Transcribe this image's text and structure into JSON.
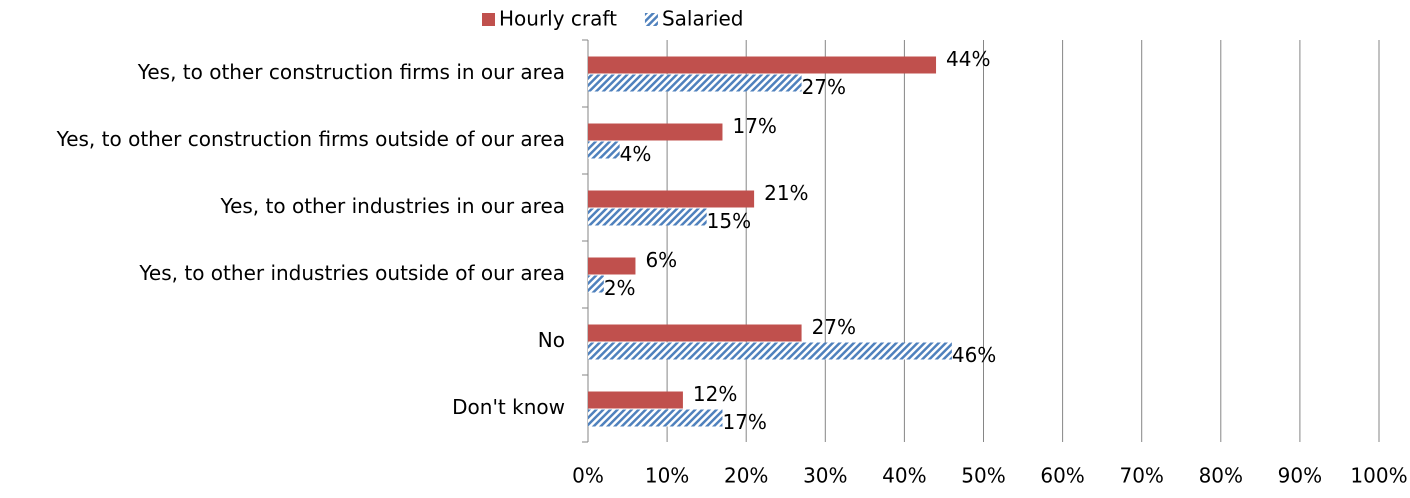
{
  "chart_data": {
    "type": "hbar",
    "categories": [
      "Yes, to other construction firms in our area",
      "Yes, to other construction firms outside of our area",
      "Yes, to other industries in our area",
      "Yes, to other industries outside of our area",
      "No",
      "Don't know"
    ],
    "series": [
      {
        "name": "Hourly craft",
        "color": "#c0504d",
        "pattern": "solid",
        "values": [
          44,
          17,
          21,
          6,
          27,
          12
        ],
        "value_labels": [
          "44%",
          "17%",
          "21%",
          "6%",
          "27%",
          "12%"
        ]
      },
      {
        "name": "Salaried",
        "color": "#4f81bd",
        "pattern": "hatch",
        "values": [
          27,
          4,
          15,
          2,
          46,
          17
        ],
        "value_labels": [
          "27%",
          "4%",
          "15%",
          "2%",
          "46%",
          "17%"
        ]
      }
    ],
    "xlim": [
      0,
      100
    ],
    "xticks": [
      {
        "value": 0,
        "label": "0%"
      },
      {
        "value": 10,
        "label": "10%"
      },
      {
        "value": 20,
        "label": "20%"
      },
      {
        "value": 30,
        "label": "30%"
      },
      {
        "value": 40,
        "label": "40%"
      },
      {
        "value": 50,
        "label": "50%"
      },
      {
        "value": 60,
        "label": "60%"
      },
      {
        "value": 70,
        "label": "70%"
      },
      {
        "value": 80,
        "label": "80%"
      },
      {
        "value": 90,
        "label": "90%"
      },
      {
        "value": 100,
        "label": "100%"
      }
    ],
    "grid": true,
    "legend": "top"
  }
}
